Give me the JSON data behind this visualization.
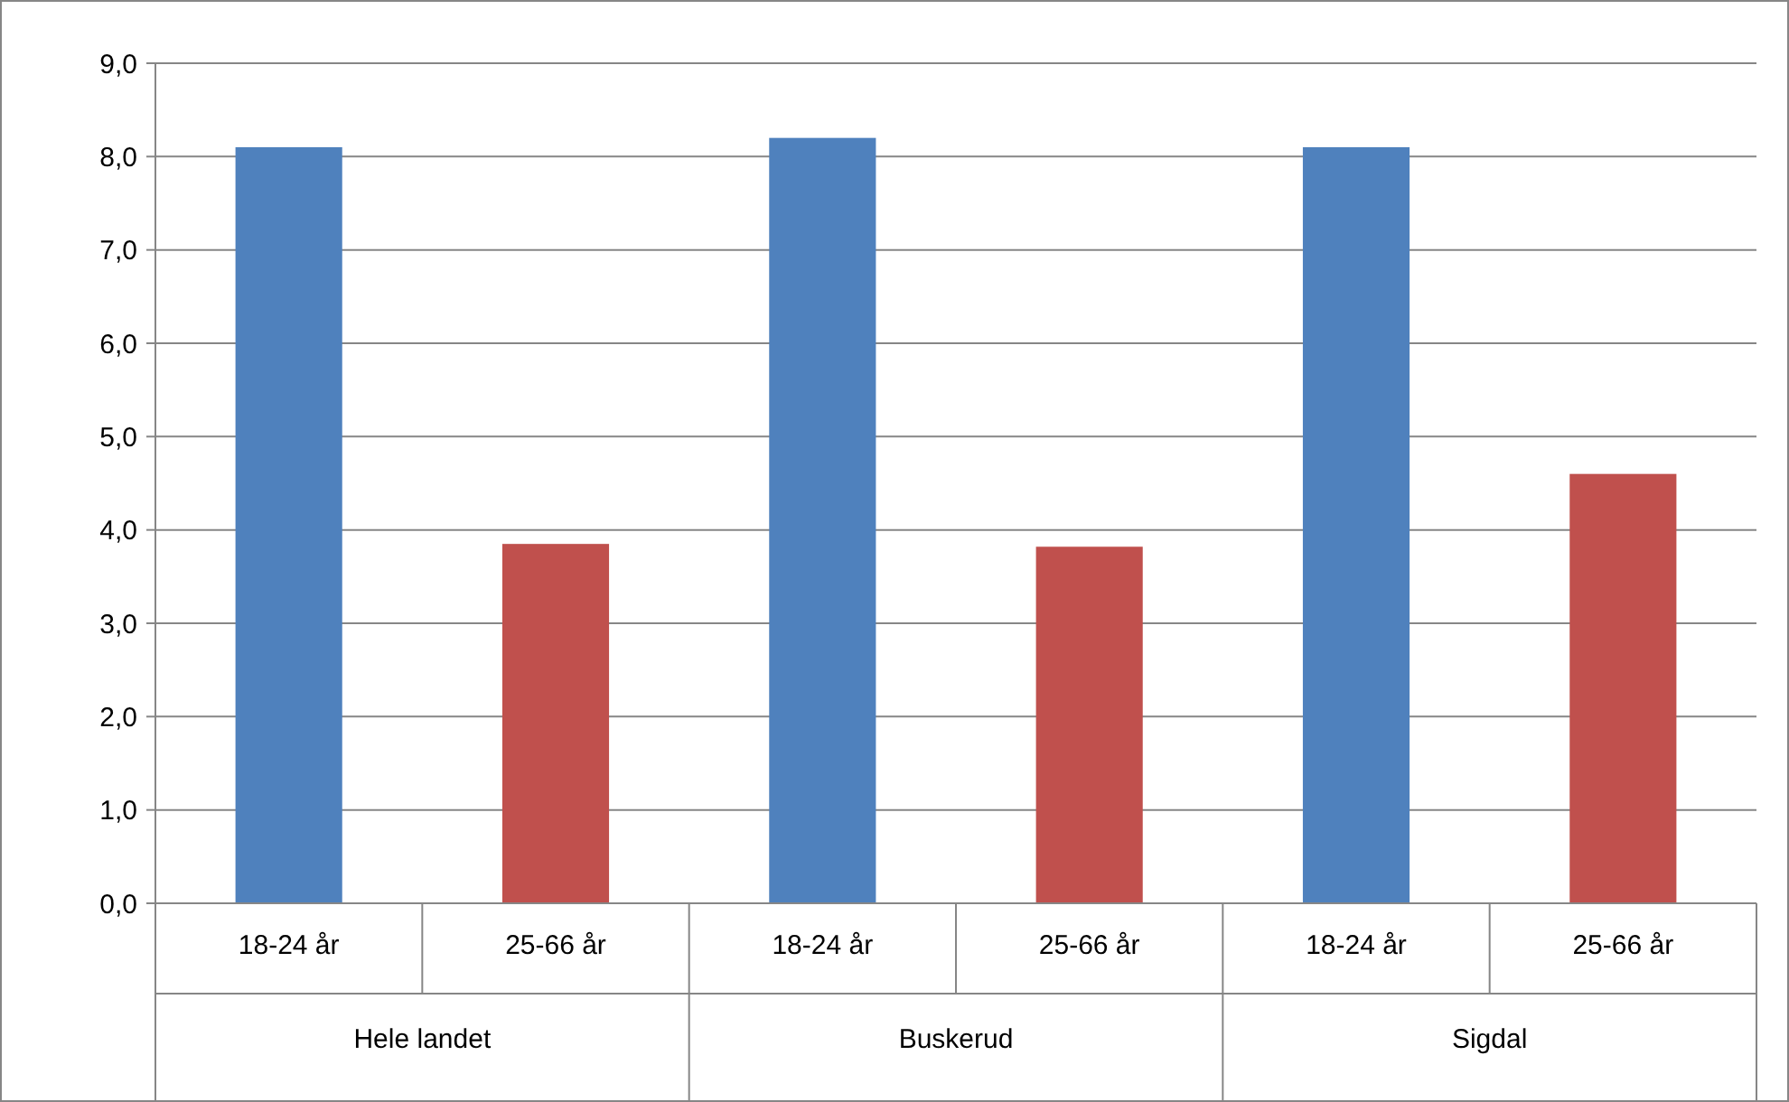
{
  "chart_data": {
    "type": "bar",
    "categories": [
      "Hele landet",
      "Buskerud",
      "Sigdal"
    ],
    "series": [
      {
        "name": "18-24 år",
        "color": "#4f81bd",
        "values": [
          8.1,
          8.2,
          8.1
        ]
      },
      {
        "name": "25-66 år",
        "color": "#c0504d",
        "values": [
          3.85,
          3.82,
          4.6
        ]
      }
    ],
    "ylim": [
      0,
      9
    ],
    "yticks": [
      {
        "value": 0,
        "label": "0,0"
      },
      {
        "value": 1,
        "label": "1,0"
      },
      {
        "value": 2,
        "label": "2,0"
      },
      {
        "value": 3,
        "label": "3,0"
      },
      {
        "value": 4,
        "label": "4,0"
      },
      {
        "value": 5,
        "label": "5,0"
      },
      {
        "value": 6,
        "label": "6,0"
      },
      {
        "value": 7,
        "label": "7,0"
      },
      {
        "value": 8,
        "label": "8,0"
      },
      {
        "value": 9,
        "label": "9,0"
      }
    ],
    "grid": "y"
  }
}
